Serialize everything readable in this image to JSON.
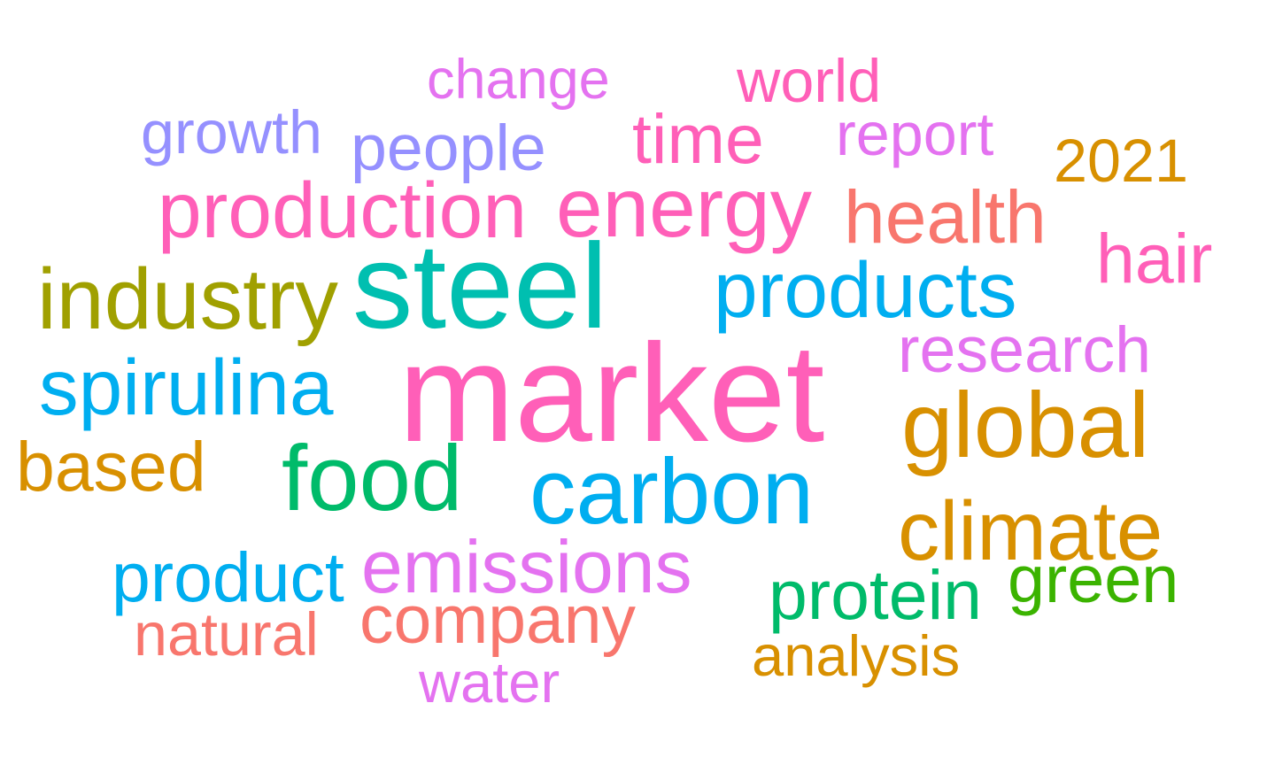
{
  "words": [
    {
      "text": "market",
      "color": "#ff5fb8",
      "weight": 1.0
    },
    {
      "text": "steel",
      "color": "#00bfb0",
      "weight": 0.92
    },
    {
      "text": "carbon",
      "color": "#00aef0",
      "weight": 0.82
    },
    {
      "text": "food",
      "color": "#00bb6a",
      "weight": 0.78
    },
    {
      "text": "products",
      "color": "#00aef0",
      "weight": 0.66
    },
    {
      "text": "spirulina",
      "color": "#00aef0",
      "weight": 0.65
    },
    {
      "text": "global",
      "color": "#d89000",
      "weight": 0.63
    },
    {
      "text": "industry",
      "color": "#a0a000",
      "weight": 0.62
    },
    {
      "text": "energy",
      "color": "#ff5fb8",
      "weight": 0.6
    },
    {
      "text": "emissions",
      "color": "#e472f0",
      "weight": 0.58
    },
    {
      "text": "climate",
      "color": "#d89000",
      "weight": 0.56
    },
    {
      "text": "production",
      "color": "#ff5fb8",
      "weight": 0.55
    },
    {
      "text": "based",
      "color": "#d89000",
      "weight": 0.54
    },
    {
      "text": "hair",
      "color": "#ff5fb8",
      "weight": 0.52
    },
    {
      "text": "health",
      "color": "#f8766d",
      "weight": 0.52
    },
    {
      "text": "protein",
      "color": "#00bb6a",
      "weight": 0.5
    },
    {
      "text": "research",
      "color": "#e472f0",
      "weight": 0.48
    },
    {
      "text": "product",
      "color": "#00aef0",
      "weight": 0.48
    },
    {
      "text": "time",
      "color": "#ff5fb8",
      "weight": 0.47
    },
    {
      "text": "company",
      "color": "#f8766d",
      "weight": 0.46
    },
    {
      "text": "green",
      "color": "#3bb300",
      "weight": 0.46
    },
    {
      "text": "natural",
      "color": "#f8766d",
      "weight": 0.45
    },
    {
      "text": "water",
      "color": "#e472f0",
      "weight": 0.44
    },
    {
      "text": "2021",
      "color": "#d89000",
      "weight": 0.44
    },
    {
      "text": "people",
      "color": "#9590ff",
      "weight": 0.43
    },
    {
      "text": "world",
      "color": "#ff5fb8",
      "weight": 0.43
    },
    {
      "text": "report",
      "color": "#e472f0",
      "weight": 0.42
    },
    {
      "text": "analysis",
      "color": "#d89000",
      "weight": 0.42
    },
    {
      "text": "growth",
      "color": "#9590ff",
      "weight": 0.4
    },
    {
      "text": "change",
      "color": "#e472f0",
      "weight": 0.39
    }
  ]
}
